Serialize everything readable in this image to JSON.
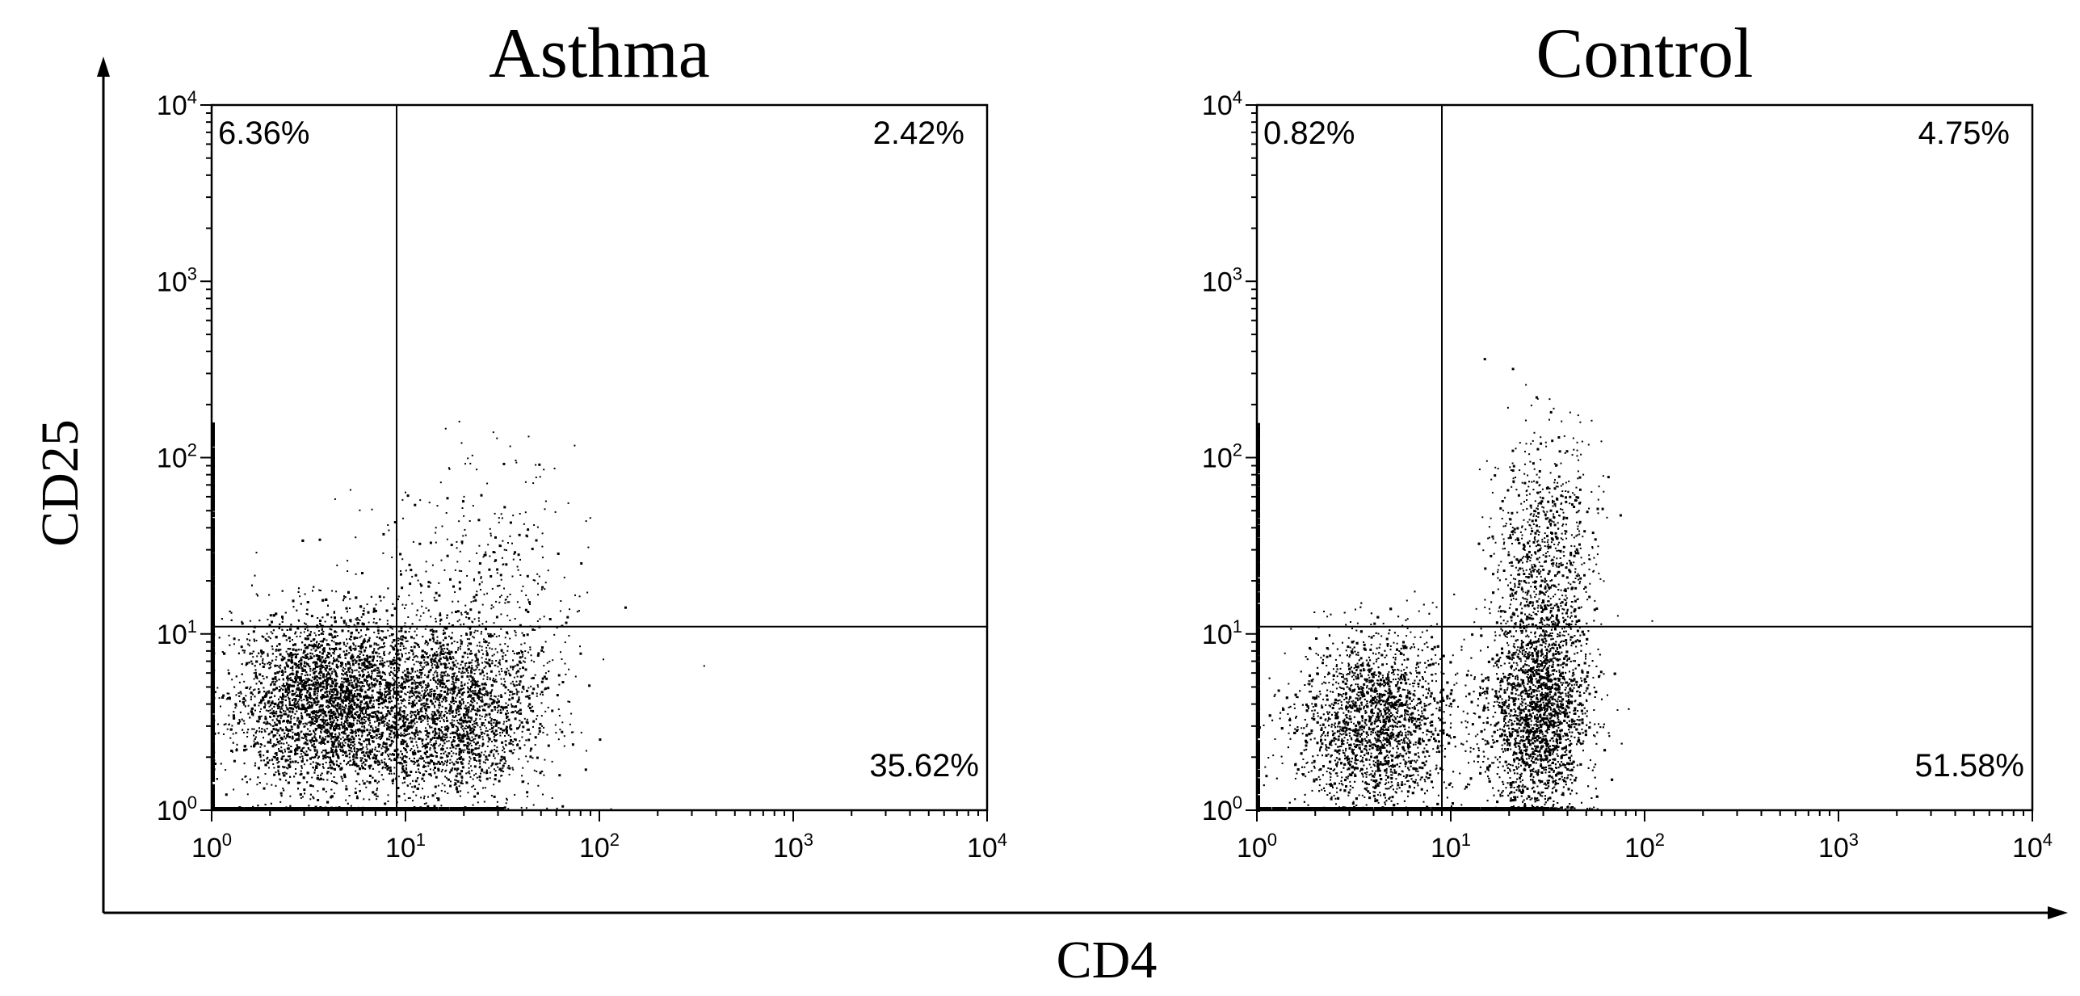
{
  "figure": {
    "x_axis_label": "CD4",
    "y_axis_label": "CD25"
  },
  "chart_data": [
    {
      "type": "scatter",
      "title": "Asthma",
      "xlabel": "CD4",
      "ylabel": "CD25",
      "xscale": "log",
      "yscale": "log",
      "xlim": [
        1,
        10000
      ],
      "ylim": [
        1,
        10000
      ],
      "x_tick_labels": [
        {
          "base": "10",
          "exp": "0"
        },
        {
          "base": "10",
          "exp": "1"
        },
        {
          "base": "10",
          "exp": "2"
        },
        {
          "base": "10",
          "exp": "3"
        },
        {
          "base": "10",
          "exp": "4"
        }
      ],
      "y_tick_labels": [
        {
          "base": "10",
          "exp": "0"
        },
        {
          "base": "10",
          "exp": "1"
        },
        {
          "base": "10",
          "exp": "2"
        },
        {
          "base": "10",
          "exp": "3"
        },
        {
          "base": "10",
          "exp": "4"
        }
      ],
      "gates": {
        "x": 9,
        "y": 11
      },
      "quadrants": {
        "upper_left": "6.36%",
        "upper_right": "2.42%",
        "lower_right": "35.62%"
      },
      "grid": false,
      "clusters": [
        {
          "cx": 4.0,
          "cy": 4.0,
          "sx": 1.75,
          "sy": 1.75,
          "n": 6500
        },
        {
          "cx": 18,
          "cy": 3.5,
          "sx": 1.7,
          "sy": 1.8,
          "n": 2200
        },
        {
          "cx": 22,
          "cy": 15,
          "sx": 1.9,
          "sy": 2.5,
          "n": 450
        }
      ]
    },
    {
      "type": "scatter",
      "title": "Control",
      "xlabel": "CD4",
      "ylabel": "CD25",
      "xscale": "log",
      "yscale": "log",
      "xlim": [
        1,
        10000
      ],
      "ylim": [
        1,
        10000
      ],
      "x_tick_labels": [
        {
          "base": "10",
          "exp": "0"
        },
        {
          "base": "10",
          "exp": "1"
        },
        {
          "base": "10",
          "exp": "2"
        },
        {
          "base": "10",
          "exp": "3"
        },
        {
          "base": "10",
          "exp": "4"
        }
      ],
      "y_tick_labels": [
        {
          "base": "10",
          "exp": "0"
        },
        {
          "base": "10",
          "exp": "1"
        },
        {
          "base": "10",
          "exp": "2"
        },
        {
          "base": "10",
          "exp": "3"
        },
        {
          "base": "10",
          "exp": "4"
        }
      ],
      "gates": {
        "x": 9,
        "y": 11
      },
      "quadrants": {
        "upper_left": "0.82%",
        "upper_right": "4.75%",
        "lower_right": "51.58%"
      },
      "grid": false,
      "clusters": [
        {
          "cx": 4.0,
          "cy": 3.0,
          "sx": 1.6,
          "sy": 1.8,
          "n": 3200
        },
        {
          "cx": 28,
          "cy": 3.5,
          "sx": 1.35,
          "sy": 2.0,
          "n": 4200
        },
        {
          "cx": 30,
          "cy": 25,
          "sx": 1.35,
          "sy": 2.3,
          "n": 900
        }
      ]
    }
  ]
}
